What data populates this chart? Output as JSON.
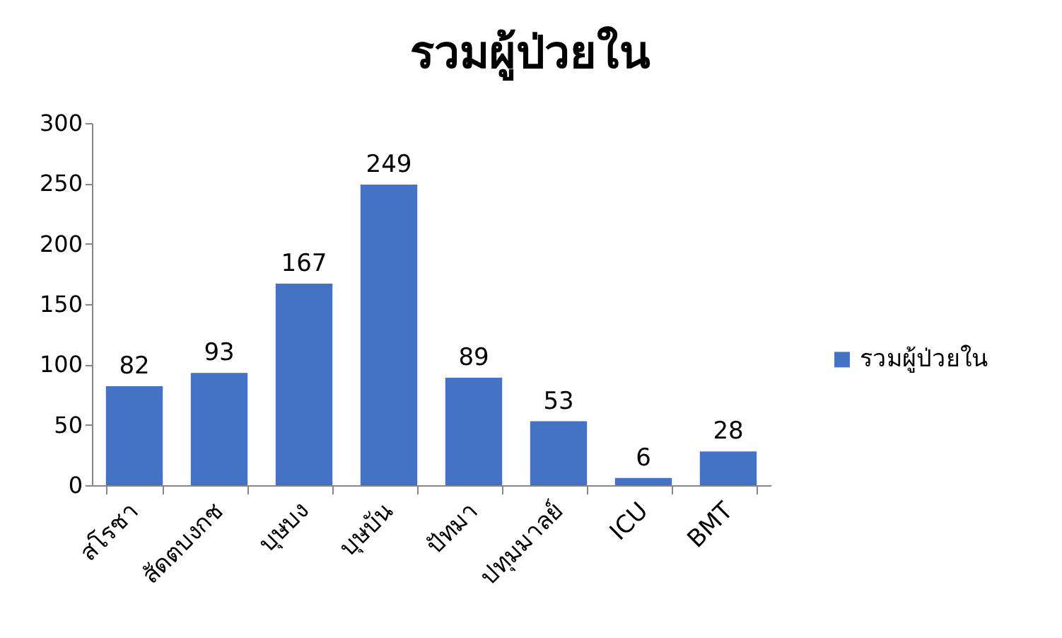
{
  "chart_data": {
    "type": "bar",
    "title": "รวมผู้ป่วยใน",
    "categories": [
      "สโรชา",
      "สัดตบงกช",
      "บุษบง",
      "บุษบัน",
      "ปัทมา",
      "ปทุมมาลย์",
      "ICU",
      "BMT"
    ],
    "series": [
      {
        "name": "รวมผู้ป่วยใน",
        "color": "#4472c4",
        "values": [
          82,
          93,
          167,
          249,
          89,
          53,
          6,
          28
        ]
      }
    ],
    "ylim": [
      0,
      300
    ],
    "yticks": [
      0,
      50,
      100,
      150,
      200,
      250,
      300
    ],
    "data_labels": true,
    "legend": "right"
  }
}
